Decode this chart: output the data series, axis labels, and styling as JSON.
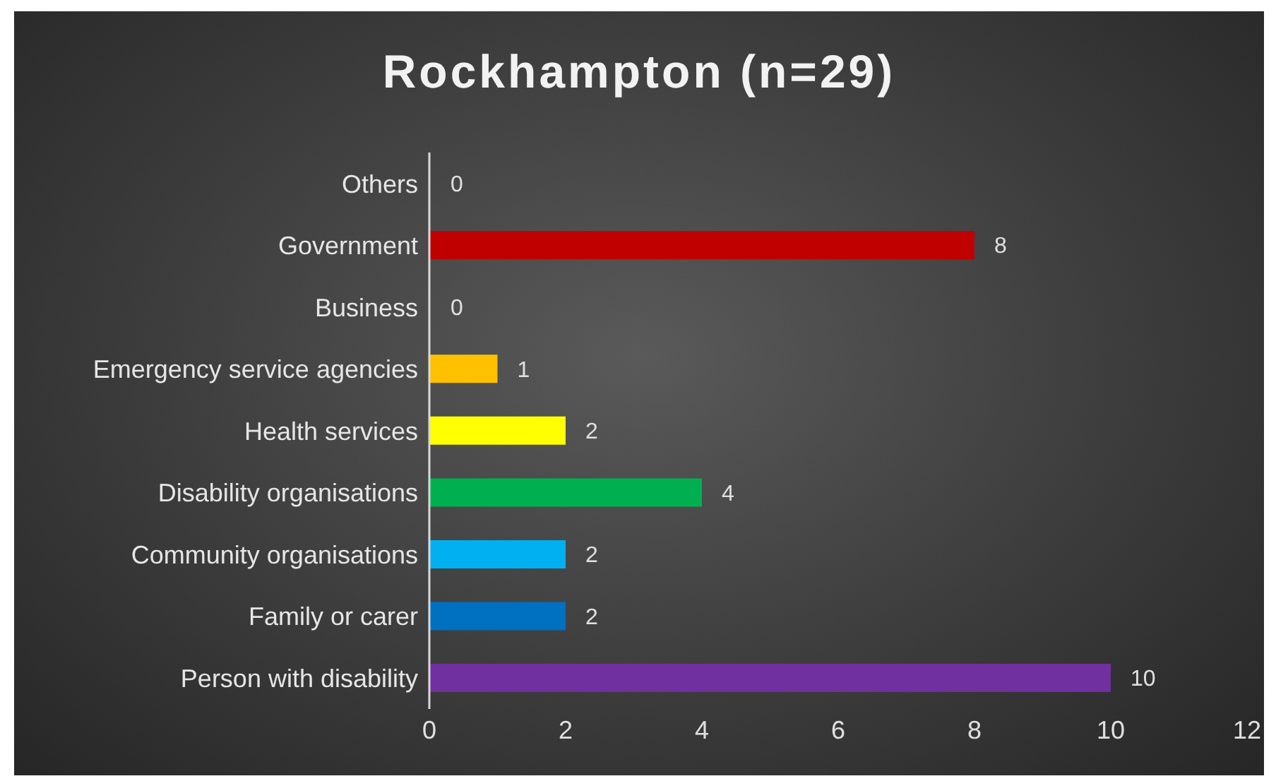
{
  "chart_data": {
    "type": "bar",
    "orientation": "horizontal",
    "title": "Rockhampton (n=29)",
    "categories": [
      "Others",
      "Government",
      "Business",
      "Emergency service agencies",
      "Health services",
      "Disability organisations",
      "Community organisations",
      "Family or carer",
      "Person with disability"
    ],
    "values": [
      0,
      8,
      0,
      1,
      2,
      4,
      2,
      2,
      10
    ],
    "colors": [
      null,
      "#c00000",
      null,
      "#ffc000",
      "#ffff00",
      "#00b050",
      "#00b0f0",
      "#0070c0",
      "#7030a0"
    ],
    "xlim": [
      0,
      12
    ],
    "xticks": [
      0,
      2,
      4,
      6,
      8,
      10,
      12
    ],
    "grid": false,
    "data_labels": true
  }
}
